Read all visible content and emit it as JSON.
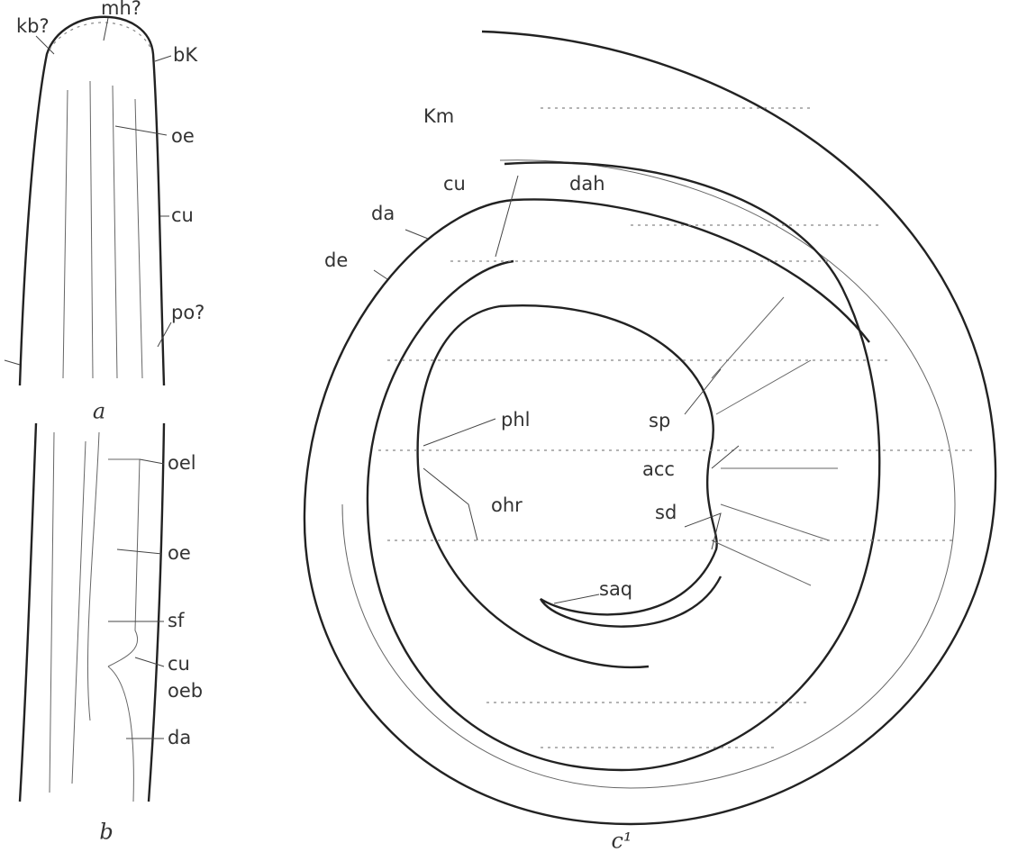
{
  "panel_a": {
    "caption": "a",
    "labels": [
      "kb?",
      "mh?",
      "bK",
      "oe",
      "cu",
      "po?"
    ]
  },
  "panel_b": {
    "caption": "b",
    "labels": [
      "oel",
      "oe",
      "sf",
      "cu",
      "oeb",
      "da"
    ]
  },
  "panel_c": {
    "caption": "c¹",
    "labels": [
      "Km",
      "cu",
      "dah",
      "da",
      "de",
      "phl",
      "sp",
      "acc",
      "sd",
      "ohr",
      "saq"
    ]
  }
}
